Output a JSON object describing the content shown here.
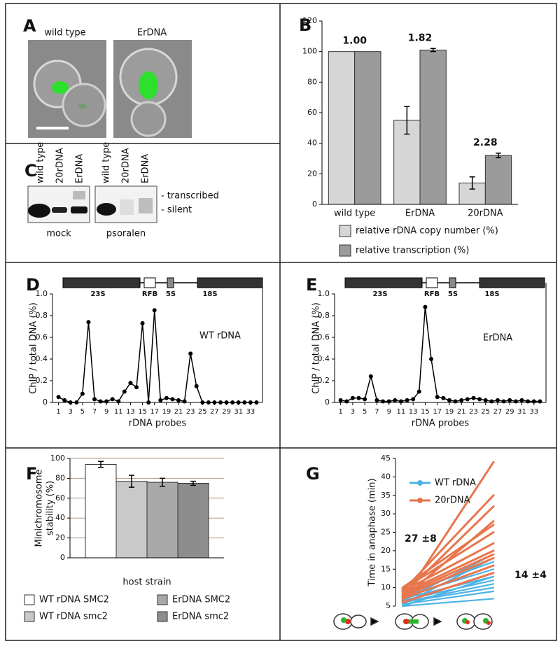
{
  "panels": {
    "A": {
      "label": "A",
      "images": [
        "wild type",
        "ErDNA"
      ]
    },
    "C": {
      "label": "C",
      "lanes": [
        "wild type",
        "20rDNA",
        "ErDNA"
      ],
      "blots": [
        "mock",
        "psoralen"
      ],
      "bands": [
        "- transcribed",
        "- silent"
      ]
    }
  },
  "chart_data": [
    {
      "panel": "B",
      "type": "bar",
      "categories": [
        "wild type",
        "ErDNA",
        "20rDNA"
      ],
      "series": [
        {
          "name": "relative rDNA copy number (%)",
          "color": "#d6d6d6",
          "values": [
            100,
            55,
            14
          ],
          "errors": [
            null,
            9,
            4
          ]
        },
        {
          "name": "relative transcription (%)",
          "color": "#9b9b9b",
          "values": [
            100,
            101,
            32
          ],
          "errors": [
            null,
            1,
            1.5
          ]
        }
      ],
      "ylim": [
        0,
        120
      ],
      "yticks": [
        0,
        20,
        40,
        60,
        80,
        100,
        120
      ],
      "annotations": [
        "1.00",
        "1.82",
        "2.28"
      ]
    },
    {
      "panel": "D",
      "type": "line",
      "map_labels": [
        "23S",
        "RFB",
        "5S",
        "18S"
      ],
      "ylabel": "ChIP / total DNA (%)",
      "xlabel": "rDNA probes",
      "annotation": "WT rDNA",
      "x": [
        1,
        2,
        3,
        4,
        5,
        6,
        7,
        8,
        9,
        10,
        11,
        12,
        13,
        14,
        15,
        16,
        17,
        18,
        19,
        20,
        21,
        22,
        23,
        24,
        25,
        26,
        27,
        28,
        29,
        30,
        31,
        32,
        33,
        34
      ],
      "values": [
        0.05,
        0.02,
        0,
        0,
        0.08,
        0.74,
        0.03,
        0.01,
        0.01,
        0.03,
        0.01,
        0.1,
        0.18,
        0.14,
        0.73,
        0,
        0.85,
        0.02,
        0.04,
        0.03,
        0.02,
        0.01,
        0.45,
        0.15,
        0,
        0,
        0,
        0,
        0,
        0,
        0,
        0,
        0,
        0
      ],
      "color": "#000000",
      "xlim": [
        0,
        35
      ],
      "xticks": [
        1,
        3,
        5,
        7,
        9,
        11,
        13,
        15,
        17,
        19,
        21,
        23,
        25,
        27,
        29,
        31,
        33
      ],
      "ylim": [
        0,
        1
      ],
      "yticks": [
        0,
        0.2,
        0.4,
        0.6,
        0.8,
        {
          "value": 1,
          "label": "1.0"
        }
      ]
    },
    {
      "panel": "E",
      "type": "line",
      "map_labels": [
        "23S",
        "RFB",
        "5S",
        "18S"
      ],
      "ylabel": "ChIP / total DNA (%)",
      "xlabel": "rDNA probes",
      "annotation": "ErDNA",
      "x": [
        1,
        2,
        3,
        4,
        5,
        6,
        7,
        8,
        9,
        10,
        11,
        12,
        13,
        14,
        15,
        16,
        17,
        18,
        19,
        20,
        21,
        22,
        23,
        24,
        25,
        26,
        27,
        28,
        29,
        30,
        31,
        32,
        33,
        34
      ],
      "values": [
        0.02,
        0.01,
        0.04,
        0.04,
        0.03,
        0.24,
        0.02,
        0.01,
        0.01,
        0.02,
        0.01,
        0.02,
        0.03,
        0.1,
        0.88,
        0.4,
        0.05,
        0.04,
        0.02,
        0.01,
        0.02,
        0.03,
        0.04,
        0.03,
        0.02,
        0.01,
        0.02,
        0.01,
        0.02,
        0.01,
        0.02,
        0.01,
        0.01,
        0.01
      ],
      "color": "#000000",
      "xlim": [
        0,
        35
      ],
      "xticks": [
        1,
        3,
        5,
        7,
        9,
        11,
        13,
        15,
        17,
        19,
        21,
        23,
        25,
        27,
        29,
        31,
        33
      ],
      "ylim": [
        0,
        1
      ],
      "yticks": [
        0,
        0.2,
        0.4,
        0.6,
        0.8,
        {
          "value": 1,
          "label": "1.0"
        }
      ]
    },
    {
      "panel": "F",
      "type": "bar",
      "ylabel": [
        "Minichromosome",
        "stability (%)"
      ],
      "xlabel": "host strain",
      "categories": [
        null
      ],
      "series": [
        {
          "name": "WT rDNA SMC2",
          "color": "#ffffff",
          "values": [
            94
          ],
          "errors": [
            3
          ]
        },
        {
          "name": "WT rDNA smc2",
          "color": "#c9c9c9",
          "values": [
            77
          ],
          "errors": [
            6
          ]
        },
        {
          "name": "ErDNA SMC2",
          "color": "#a9a9a9",
          "values": [
            76
          ],
          "errors": [
            4
          ]
        },
        {
          "name": "ErDNA smc2",
          "color": "#8d8d8d",
          "values": [
            75
          ],
          "errors": [
            2
          ]
        }
      ],
      "ylim": [
        0,
        100
      ],
      "yticks": [
        0,
        20,
        40,
        60,
        80,
        100
      ],
      "grid": true
    },
    {
      "panel": "G",
      "type": "slope",
      "ylabel": "Time in anaphase (min)",
      "ylim": [
        5,
        45
      ],
      "yticks": [
        5,
        10,
        15,
        20,
        25,
        30,
        35,
        40,
        45
      ],
      "series": [
        {
          "name": "WT rDNA",
          "color": "#4db3e6",
          "annotation": "14 ±4",
          "start": [
            5,
            5.5,
            6,
            6,
            6.5,
            7,
            5,
            6,
            7.5,
            8,
            5.5,
            6.5
          ],
          "end": [
            7,
            9,
            10,
            11,
            12,
            13,
            13,
            14,
            15,
            17,
            18,
            19
          ]
        },
        {
          "name": "20rDNA",
          "color": "#e8764d",
          "annotation": "27 ±8",
          "start": [
            6,
            7,
            7.5,
            8,
            8.5,
            9,
            9.5,
            10,
            7,
            8,
            9,
            6.5
          ],
          "end": [
            14,
            16,
            18,
            19,
            20,
            22,
            25,
            27,
            28,
            32,
            35,
            44
          ]
        }
      ]
    }
  ]
}
